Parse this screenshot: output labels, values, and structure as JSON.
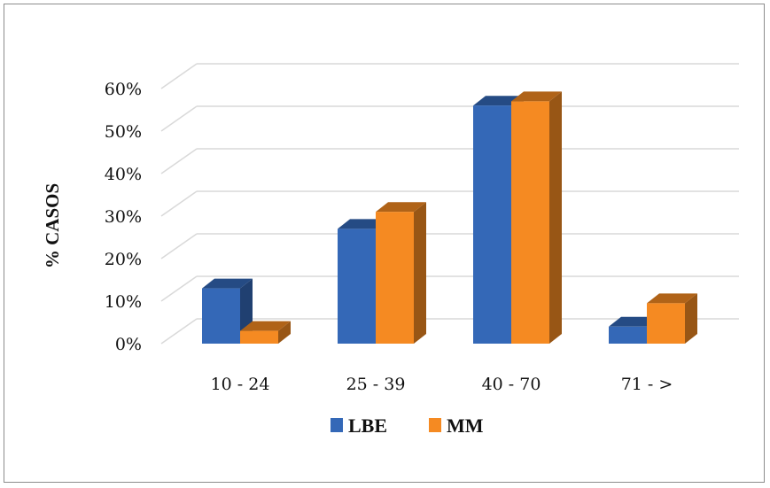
{
  "chart_data": {
    "type": "bar",
    "title": "",
    "xlabel": "",
    "ylabel": "% CASOS",
    "categories": [
      "10 - 24",
      "25 - 39",
      "40 - 70",
      "71 - >"
    ],
    "series": [
      {
        "name": "LBE",
        "values": [
          13,
          27,
          56,
          4
        ],
        "color": "#3468b7"
      },
      {
        "name": "MM",
        "values": [
          3,
          31,
          57,
          9.5
        ],
        "color": "#f58a22"
      }
    ],
    "ylim": [
      0,
      60
    ],
    "yticks": [
      "0%",
      "10%",
      "20%",
      "30%",
      "40%",
      "50%",
      "60%"
    ],
    "grid": true,
    "legend_position": "bottom-center",
    "style": "3d"
  }
}
